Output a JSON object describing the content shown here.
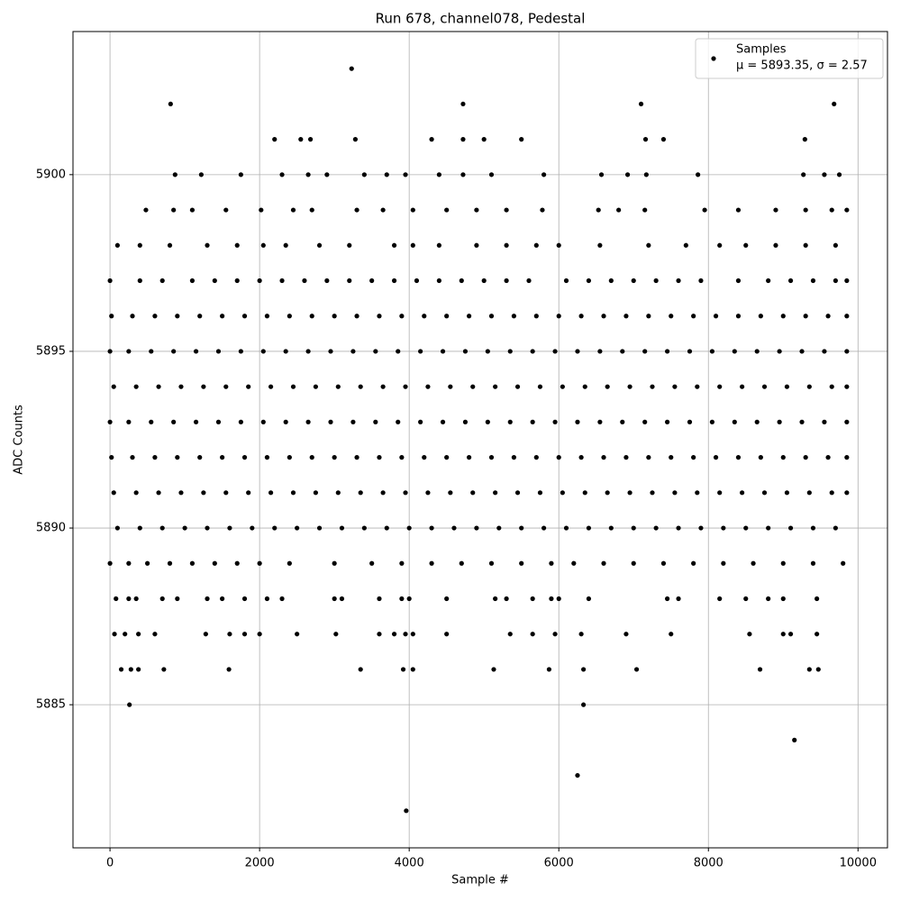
{
  "chart_data": {
    "type": "scatter",
    "title": "Run 678, channel078, Pedestal",
    "xlabel": "Sample #",
    "ylabel": "ADC Counts",
    "xlim": [
      -495,
      10394
    ],
    "ylim": [
      5880.95,
      5904.05
    ],
    "xticks": [
      0,
      2000,
      4000,
      6000,
      8000,
      10000
    ],
    "yticks": [
      5885,
      5890,
      5895,
      5900
    ],
    "grid": true,
    "legend": "upper right",
    "annotation": "μ = 5893.35, σ = 2.57",
    "series": [
      {
        "name": "Samples",
        "color": "#000000",
        "x": [
          3230,
          810,
          4720,
          7100,
          9680,
          2200,
          2550,
          2680,
          3280,
          4300,
          4720,
          5000,
          5500,
          7160,
          7400,
          9290,
          870,
          1220,
          1750,
          2300,
          2650,
          2900,
          3400,
          3700,
          3950,
          4400,
          4720,
          5100,
          5800,
          6570,
          6920,
          7170,
          7860,
          9270,
          9550,
          9750,
          480,
          850,
          1100,
          1550,
          2020,
          2450,
          2700,
          3300,
          3650,
          4050,
          4500,
          4900,
          5300,
          5780,
          6530,
          6800,
          7150,
          7950,
          8400,
          8900,
          9300,
          9650,
          9850,
          100,
          400,
          800,
          1300,
          1700,
          2050,
          2350,
          2800,
          3200,
          3800,
          4050,
          4400,
          4900,
          5300,
          5700,
          6000,
          6550,
          7200,
          7700,
          8150,
          8500,
          8900,
          9300,
          9700,
          0,
          400,
          700,
          1100,
          1400,
          1700,
          2000,
          2300,
          2600,
          2900,
          3200,
          3500,
          3800,
          4100,
          4400,
          4700,
          5000,
          5300,
          5600,
          6100,
          6400,
          6700,
          7000,
          7300,
          7600,
          7900,
          8400,
          8800,
          9100,
          9400,
          9700,
          9850,
          20,
          300,
          600,
          900,
          1200,
          1500,
          1800,
          2100,
          2400,
          2700,
          3000,
          3300,
          3600,
          3900,
          4200,
          4500,
          4800,
          5100,
          5400,
          5700,
          6000,
          6300,
          6600,
          6900,
          7200,
          7500,
          7800,
          8100,
          8400,
          8700,
          9000,
          9300,
          9600,
          9850,
          0,
          250,
          550,
          850,
          1150,
          1450,
          1750,
          2050,
          2350,
          2650,
          2950,
          3250,
          3550,
          3850,
          4150,
          4450,
          4750,
          5050,
          5350,
          5650,
          5950,
          6250,
          6550,
          6850,
          7150,
          7450,
          7750,
          8050,
          8350,
          8650,
          8950,
          9250,
          9550,
          9850,
          50,
          350,
          650,
          950,
          1250,
          1550,
          1850,
          2150,
          2450,
          2750,
          3050,
          3350,
          3650,
          3950,
          4250,
          4550,
          4850,
          5150,
          5450,
          5750,
          6050,
          6350,
          6650,
          6950,
          7250,
          7550,
          7850,
          8150,
          8450,
          8750,
          9050,
          9350,
          9650,
          9850,
          0,
          250,
          550,
          850,
          1150,
          1450,
          1750,
          2050,
          2350,
          2650,
          2950,
          3250,
          3550,
          3850,
          4150,
          4450,
          4750,
          5050,
          5350,
          5650,
          5950,
          6250,
          6550,
          6850,
          7150,
          7450,
          7750,
          8050,
          8350,
          8650,
          8950,
          9250,
          9550,
          9850,
          20,
          300,
          600,
          900,
          1200,
          1500,
          1800,
          2100,
          2400,
          2700,
          3000,
          3300,
          3600,
          3900,
          4200,
          4500,
          4800,
          5100,
          5400,
          5700,
          6000,
          6300,
          6600,
          6900,
          7200,
          7500,
          7800,
          8100,
          8400,
          8700,
          9000,
          9300,
          9600,
          9850,
          50,
          350,
          650,
          950,
          1250,
          1550,
          1850,
          2150,
          2450,
          2750,
          3050,
          3350,
          3650,
          3950,
          4250,
          4550,
          4850,
          5150,
          5450,
          5750,
          6050,
          6350,
          6650,
          6950,
          7250,
          7550,
          7850,
          8150,
          8450,
          8750,
          9050,
          9350,
          9650,
          9850,
          100,
          400,
          700,
          1000,
          1300,
          1600,
          1900,
          2200,
          2500,
          2800,
          3100,
          3400,
          3700,
          4000,
          4300,
          4600,
          4900,
          5200,
          5500,
          5800,
          6100,
          6400,
          6700,
          7000,
          7300,
          7600,
          7900,
          8200,
          8500,
          8800,
          9100,
          9400,
          9700,
          0,
          250,
          500,
          800,
          1100,
          1400,
          1700,
          2000,
          2400,
          3000,
          3500,
          3900,
          4300,
          4700,
          5100,
          5500,
          5900,
          6200,
          6600,
          7000,
          7400,
          7800,
          8200,
          8600,
          9000,
          9400,
          9800,
          80,
          250,
          350,
          700,
          900,
          1300,
          1500,
          1800,
          2100,
          2300,
          3000,
          3100,
          3600,
          3900,
          4000,
          4500,
          5150,
          5300,
          5650,
          5900,
          6000,
          6400,
          7450,
          7600,
          8150,
          8500,
          8800,
          9000,
          9450,
          60,
          200,
          380,
          600,
          1280,
          1600,
          1800,
          2000,
          2500,
          3020,
          3600,
          3800,
          3950,
          4050,
          4500,
          5350,
          5650,
          5950,
          6300,
          6900,
          7500,
          8550,
          9000,
          9100,
          9450,
          150,
          280,
          380,
          720,
          1590,
          3350,
          3920,
          4050,
          5130,
          5870,
          6330,
          7040,
          8690,
          9350,
          9470,
          260,
          6330,
          9150,
          6250,
          3960
        ],
        "values": [
          5903,
          5902,
          5902,
          5902,
          5902,
          5901,
          5901,
          5901,
          5901,
          5901,
          5901,
          5901,
          5901,
          5901,
          5901,
          5901,
          5900,
          5900,
          5900,
          5900,
          5900,
          5900,
          5900,
          5900,
          5900,
          5900,
          5900,
          5900,
          5900,
          5900,
          5900,
          5900,
          5900,
          5900,
          5900,
          5900,
          5899,
          5899,
          5899,
          5899,
          5899,
          5899,
          5899,
          5899,
          5899,
          5899,
          5899,
          5899,
          5899,
          5899,
          5899,
          5899,
          5899,
          5899,
          5899,
          5899,
          5899,
          5899,
          5899,
          5898,
          5898,
          5898,
          5898,
          5898,
          5898,
          5898,
          5898,
          5898,
          5898,
          5898,
          5898,
          5898,
          5898,
          5898,
          5898,
          5898,
          5898,
          5898,
          5898,
          5898,
          5898,
          5898,
          5898,
          5897,
          5897,
          5897,
          5897,
          5897,
          5897,
          5897,
          5897,
          5897,
          5897,
          5897,
          5897,
          5897,
          5897,
          5897,
          5897,
          5897,
          5897,
          5897,
          5897,
          5897,
          5897,
          5897,
          5897,
          5897,
          5897,
          5897,
          5897,
          5897,
          5897,
          5897,
          5897,
          5896,
          5896,
          5896,
          5896,
          5896,
          5896,
          5896,
          5896,
          5896,
          5896,
          5896,
          5896,
          5896,
          5896,
          5896,
          5896,
          5896,
          5896,
          5896,
          5896,
          5896,
          5896,
          5896,
          5896,
          5896,
          5896,
          5896,
          5896,
          5896,
          5896,
          5896,
          5896,
          5896,
          5896,
          5895,
          5895,
          5895,
          5895,
          5895,
          5895,
          5895,
          5895,
          5895,
          5895,
          5895,
          5895,
          5895,
          5895,
          5895,
          5895,
          5895,
          5895,
          5895,
          5895,
          5895,
          5895,
          5895,
          5895,
          5895,
          5895,
          5895,
          5895,
          5895,
          5895,
          5895,
          5895,
          5895,
          5895,
          5894,
          5894,
          5894,
          5894,
          5894,
          5894,
          5894,
          5894,
          5894,
          5894,
          5894,
          5894,
          5894,
          5894,
          5894,
          5894,
          5894,
          5894,
          5894,
          5894,
          5894,
          5894,
          5894,
          5894,
          5894,
          5894,
          5894,
          5894,
          5894,
          5894,
          5894,
          5894,
          5894,
          5894,
          5893,
          5893,
          5893,
          5893,
          5893,
          5893,
          5893,
          5893,
          5893,
          5893,
          5893,
          5893,
          5893,
          5893,
          5893,
          5893,
          5893,
          5893,
          5893,
          5893,
          5893,
          5893,
          5893,
          5893,
          5893,
          5893,
          5893,
          5893,
          5893,
          5893,
          5893,
          5893,
          5893,
          5893,
          5892,
          5892,
          5892,
          5892,
          5892,
          5892,
          5892,
          5892,
          5892,
          5892,
          5892,
          5892,
          5892,
          5892,
          5892,
          5892,
          5892,
          5892,
          5892,
          5892,
          5892,
          5892,
          5892,
          5892,
          5892,
          5892,
          5892,
          5892,
          5892,
          5892,
          5892,
          5892,
          5892,
          5892,
          5891,
          5891,
          5891,
          5891,
          5891,
          5891,
          5891,
          5891,
          5891,
          5891,
          5891,
          5891,
          5891,
          5891,
          5891,
          5891,
          5891,
          5891,
          5891,
          5891,
          5891,
          5891,
          5891,
          5891,
          5891,
          5891,
          5891,
          5891,
          5891,
          5891,
          5891,
          5891,
          5891,
          5891,
          5890,
          5890,
          5890,
          5890,
          5890,
          5890,
          5890,
          5890,
          5890,
          5890,
          5890,
          5890,
          5890,
          5890,
          5890,
          5890,
          5890,
          5890,
          5890,
          5890,
          5890,
          5890,
          5890,
          5890,
          5890,
          5890,
          5890,
          5890,
          5890,
          5890,
          5890,
          5890,
          5890,
          5889,
          5889,
          5889,
          5889,
          5889,
          5889,
          5889,
          5889,
          5889,
          5889,
          5889,
          5889,
          5889,
          5889,
          5889,
          5889,
          5889,
          5889,
          5889,
          5889,
          5889,
          5889,
          5889,
          5889,
          5889,
          5889,
          5889,
          5888,
          5888,
          5888,
          5888,
          5888,
          5888,
          5888,
          5888,
          5888,
          5888,
          5888,
          5888,
          5888,
          5888,
          5888,
          5888,
          5888,
          5888,
          5888,
          5888,
          5888,
          5888,
          5888,
          5888,
          5888,
          5888,
          5888,
          5888,
          5888,
          5887,
          5887,
          5887,
          5887,
          5887,
          5887,
          5887,
          5887,
          5887,
          5887,
          5887,
          5887,
          5887,
          5887,
          5887,
          5887,
          5887,
          5887,
          5887,
          5887,
          5887,
          5887,
          5887,
          5887,
          5887,
          5886,
          5886,
          5886,
          5886,
          5886,
          5886,
          5886,
          5886,
          5886,
          5886,
          5886,
          5886,
          5886,
          5886,
          5886,
          5885,
          5885,
          5884,
          5883,
          5882
        ]
      }
    ]
  }
}
